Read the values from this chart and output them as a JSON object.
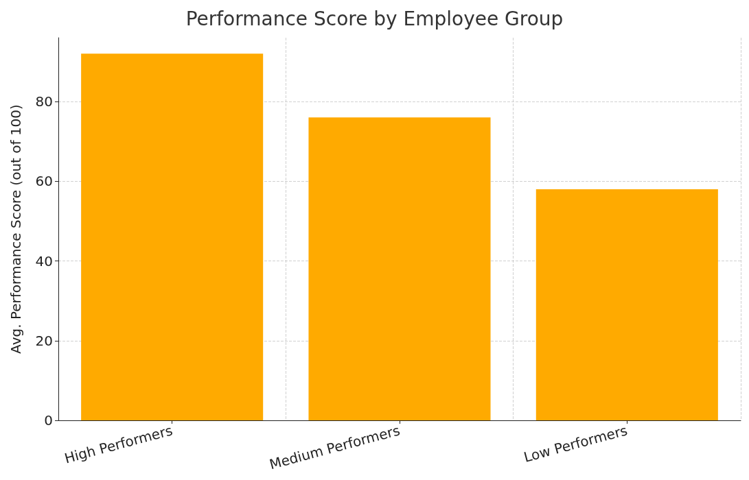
{
  "chart_data": {
    "type": "bar",
    "title": "Performance Score by Employee Group",
    "ylabel": "Avg. Performance Score (out of 100)",
    "categories": [
      "High Performers",
      "Medium Performers",
      "Low Performers"
    ],
    "values": [
      92,
      76,
      58
    ],
    "color": "#ffaa00",
    "ylim": [
      0,
      96
    ],
    "yticks": [
      0,
      20,
      40,
      60,
      80
    ],
    "grid": true
  }
}
